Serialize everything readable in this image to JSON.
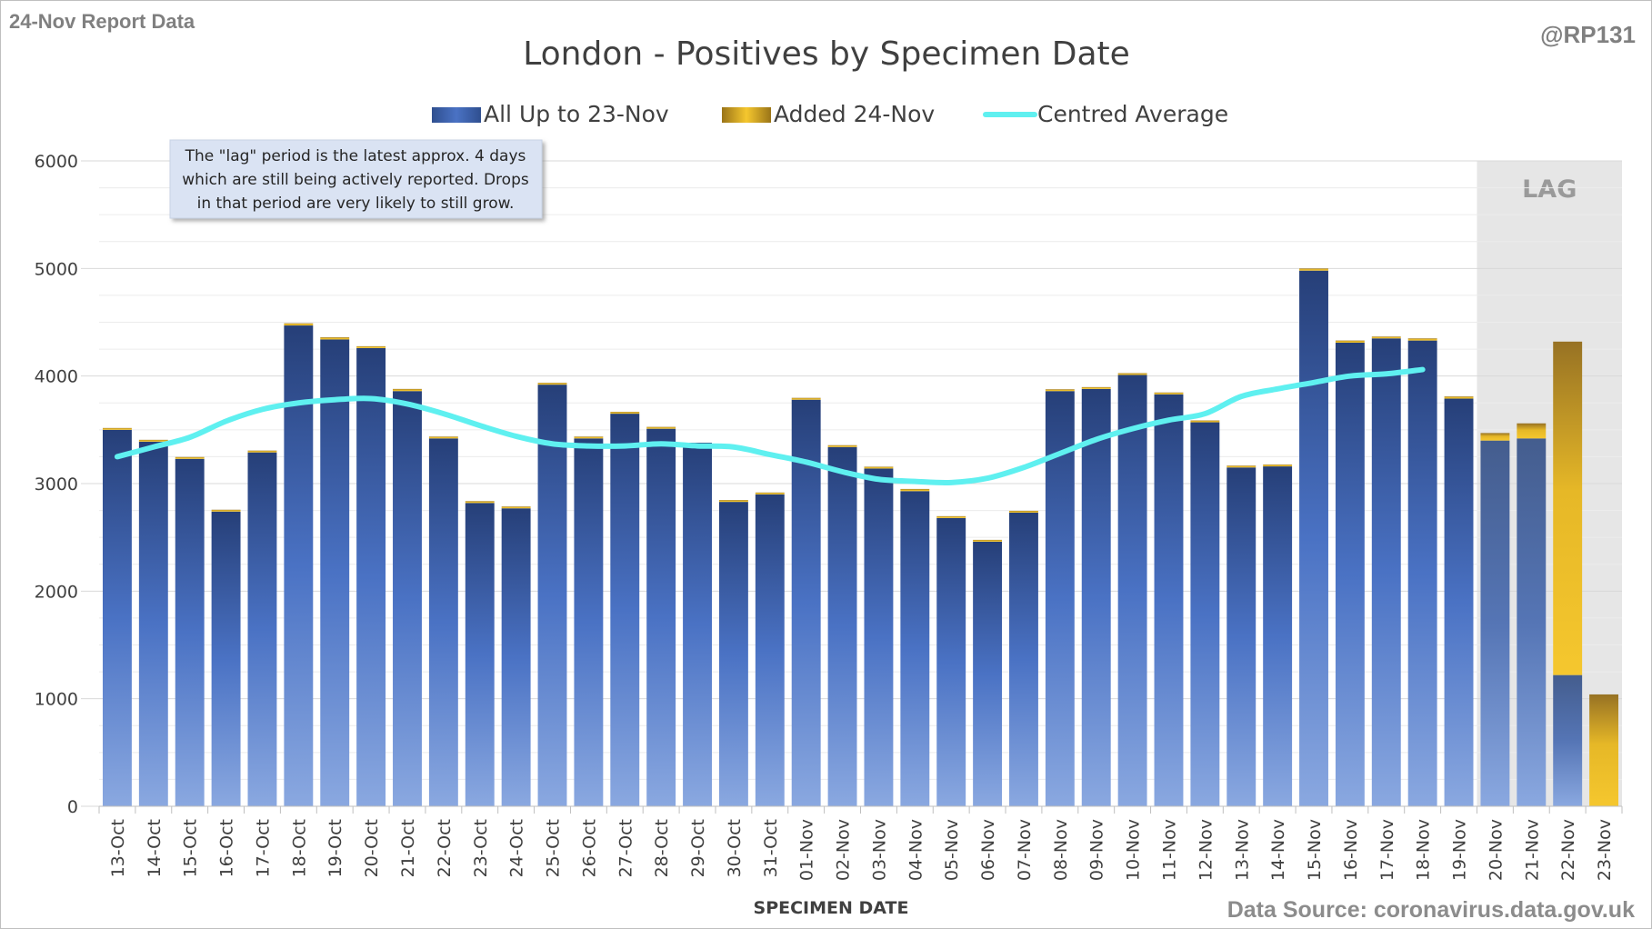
{
  "header": {
    "report_label": "24-Nov Report Data",
    "handle": "@RP131"
  },
  "footer": {
    "source": "Data Source: coronavirus.data.gov.uk"
  },
  "note": {
    "lines": [
      "The \"lag\" period is the latest approx. 4 days",
      "which are still being actively reported.  Drops",
      "in that period are very likely to still grow."
    ]
  },
  "lag_label": "LAG",
  "colors": {
    "base_bar": "#2f4f8f",
    "base_bar_light": "#6f93d6",
    "added_bar": "#e8b923",
    "added_bar_dark": "#9a7418",
    "average_line": "#5ff0f0",
    "grid": "#d9d9d9",
    "lag_shade": "#e6e6e6"
  },
  "chart_data": {
    "type": "bar",
    "title": "London - Positives by Specimen Date",
    "xlabel": "SPECIMEN DATE",
    "ylabel": "",
    "ylim": [
      0,
      6000
    ],
    "yticks": [
      0,
      1000,
      2000,
      3000,
      4000,
      5000,
      6000
    ],
    "grid": true,
    "legend_position": "top",
    "stacked": true,
    "categories": [
      "13-Oct",
      "14-Oct",
      "15-Oct",
      "16-Oct",
      "17-Oct",
      "18-Oct",
      "19-Oct",
      "20-Oct",
      "21-Oct",
      "22-Oct",
      "23-Oct",
      "24-Oct",
      "25-Oct",
      "26-Oct",
      "27-Oct",
      "28-Oct",
      "29-Oct",
      "30-Oct",
      "31-Oct",
      "01-Nov",
      "02-Nov",
      "03-Nov",
      "04-Nov",
      "05-Nov",
      "06-Nov",
      "07-Nov",
      "08-Nov",
      "09-Nov",
      "10-Nov",
      "11-Nov",
      "12-Nov",
      "13-Nov",
      "14-Nov",
      "15-Nov",
      "16-Nov",
      "17-Nov",
      "18-Nov",
      "19-Nov",
      "20-Nov",
      "21-Nov",
      "22-Nov",
      "23-Nov"
    ],
    "lag_start_category": "20-Nov",
    "series": [
      {
        "name": "All Up to 23-Nov",
        "kind": "bar",
        "values": [
          3500,
          3390,
          3230,
          2740,
          3290,
          4470,
          4340,
          4260,
          3860,
          3420,
          2820,
          2770,
          3920,
          3420,
          3650,
          3510,
          3380,
          2830,
          2900,
          3780,
          3340,
          3140,
          2930,
          2680,
          2460,
          2730,
          3860,
          3880,
          4010,
          3830,
          3570,
          3150,
          3160,
          4980,
          4310,
          4350,
          4330,
          3790,
          3400,
          3420,
          1220,
          0
        ]
      },
      {
        "name": "Added 24-Nov",
        "kind": "bar",
        "values": [
          15,
          10,
          5,
          5,
          15,
          20,
          20,
          10,
          20,
          15,
          15,
          10,
          5,
          15,
          15,
          5,
          0,
          5,
          5,
          5,
          5,
          5,
          20,
          5,
          15,
          15,
          15,
          15,
          15,
          15,
          15,
          10,
          15,
          20,
          20,
          15,
          20,
          20,
          70,
          140,
          3100,
          1040
        ]
      },
      {
        "name": "Centred Average",
        "kind": "line",
        "values": [
          3250,
          3340,
          3430,
          3580,
          3690,
          3750,
          3780,
          3790,
          3740,
          3650,
          3540,
          3440,
          3370,
          3350,
          3350,
          3370,
          3350,
          3340,
          3270,
          3200,
          3110,
          3040,
          3020,
          3010,
          3050,
          3150,
          3280,
          3410,
          3510,
          3590,
          3650,
          3810,
          3880,
          3940,
          4000,
          4020,
          4060,
          null,
          null,
          null,
          null,
          null
        ]
      }
    ]
  }
}
